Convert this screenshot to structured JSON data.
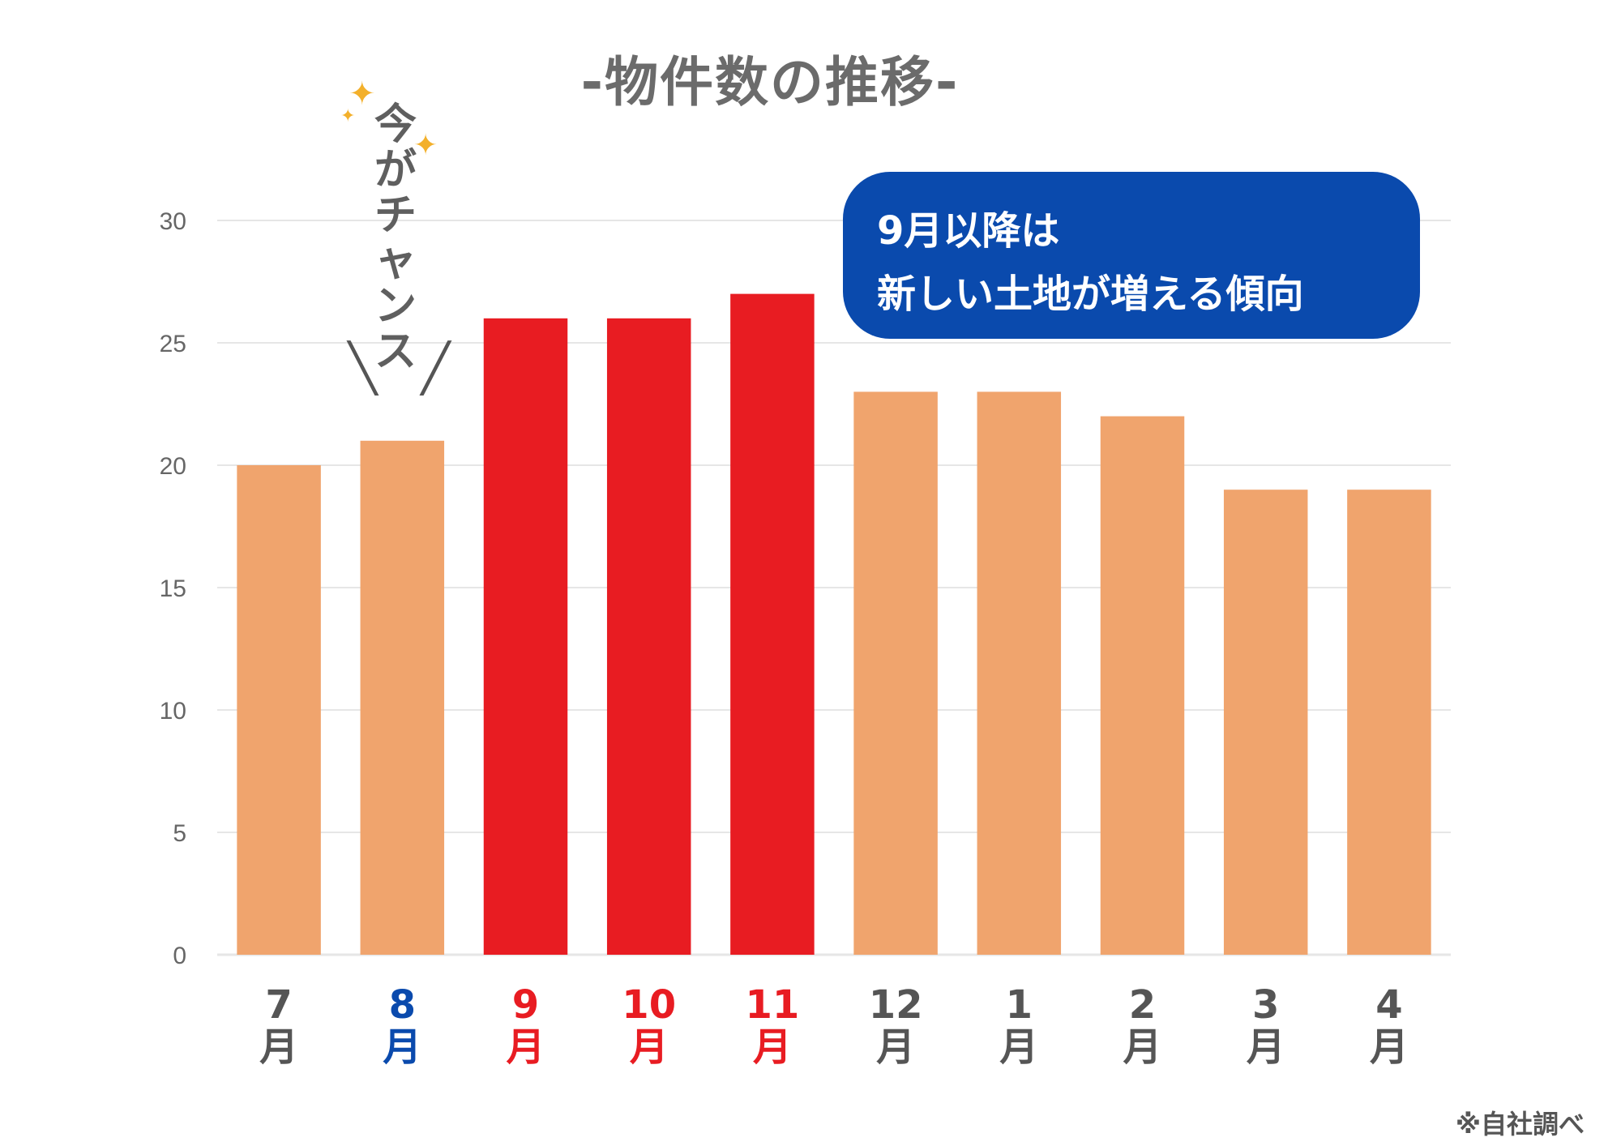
{
  "title": "-物件数の推移-",
  "annotation_chance": "今がチャンス",
  "callout": {
    "line1": "9月以降は",
    "line2": "新しい土地が増える傾向",
    "color": "#0a4aad"
  },
  "footnote": "※自社調べ",
  "colors": {
    "bar_normal": "#f0a46d",
    "bar_highlight": "#e81c22",
    "label_normal": "#555555",
    "label_blue": "#0a4aad",
    "label_red": "#e81c22",
    "grid": "#e6e6e6"
  },
  "chart_data": {
    "type": "bar",
    "title": "-物件数の推移-",
    "categories": [
      "7月",
      "8月",
      "9月",
      "10月",
      "11月",
      "12月",
      "1月",
      "2月",
      "3月",
      "4月"
    ],
    "category_numbers": [
      "7",
      "8",
      "9",
      "10",
      "11",
      "12",
      "1",
      "2",
      "3",
      "4"
    ],
    "category_suffix": "月",
    "values": [
      20,
      21,
      26,
      26,
      27,
      23,
      23,
      22,
      19,
      19
    ],
    "highlighted": [
      false,
      false,
      true,
      true,
      true,
      false,
      false,
      false,
      false,
      false
    ],
    "label_styles": [
      "normal",
      "blue",
      "red",
      "red",
      "red",
      "normal",
      "normal",
      "normal",
      "normal",
      "normal"
    ],
    "y_ticks": [
      0,
      5,
      10,
      15,
      20,
      25,
      30
    ],
    "ylim": [
      0,
      30
    ],
    "grid": true,
    "xlabel": "",
    "ylabel": ""
  }
}
